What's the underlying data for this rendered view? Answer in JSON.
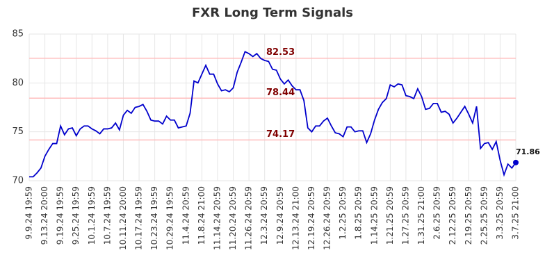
{
  "chart_data": {
    "type": "line",
    "title": "FXR Long Term Signals",
    "categories": [
      "9.9.24 19:59",
      null,
      null,
      null,
      "9.13.24 20:00",
      null,
      null,
      null,
      "9.19.24 19:59",
      null,
      null,
      null,
      "9.25.24 19:59",
      null,
      null,
      null,
      "10.1.24 19:59",
      null,
      null,
      null,
      "10.7.24 19:59",
      null,
      null,
      null,
      "10.11.24 20:00",
      null,
      null,
      null,
      "10.17.24 19:59",
      null,
      null,
      null,
      "10.23.24 19:59",
      null,
      null,
      null,
      "10.29.24 19:59",
      null,
      null,
      null,
      "11.4.24 20:59",
      null,
      null,
      null,
      "11.8.24 21:00",
      null,
      null,
      null,
      "11.14.24 20:59",
      null,
      null,
      null,
      "11.20.24 20:59",
      null,
      null,
      null,
      "11.26.24 20:59",
      null,
      null,
      null,
      "12.3.24 20:59",
      null,
      null,
      null,
      "12.9.24 20:59",
      null,
      null,
      null,
      "12.13.24 21:00",
      null,
      null,
      null,
      "12.19.24 20:59",
      null,
      null,
      null,
      "12.26.24 20:59",
      null,
      null,
      null,
      "1.2.25 20:59",
      null,
      null,
      null,
      "1.8.25 20:59",
      null,
      null,
      null,
      "1.14.25 20:59",
      null,
      null,
      null,
      "1.21.25 20:59",
      null,
      null,
      null,
      "1.27.25 20:59",
      null,
      null,
      null,
      "1.31.25 21:00",
      null,
      null,
      null,
      "2.6.25 20:59",
      null,
      null,
      null,
      "2.12.25 20:59",
      null,
      null,
      null,
      "2.19.25 20:59",
      null,
      null,
      null,
      "2.25.25 20:59",
      null,
      null,
      null,
      "3.3.25 20:59",
      null,
      null,
      null,
      "3.7.25 21:00"
    ],
    "values": [
      70.4,
      70.4,
      70.8,
      71.3,
      72.5,
      73.2,
      73.8,
      73.8,
      75.6,
      74.7,
      75.3,
      75.4,
      74.6,
      75.3,
      75.6,
      75.6,
      75.3,
      75.1,
      74.8,
      75.3,
      75.3,
      75.4,
      75.9,
      75.2,
      76.7,
      77.2,
      76.9,
      77.5,
      77.6,
      77.8,
      77.1,
      76.2,
      76.1,
      76.1,
      75.8,
      76.6,
      76.2,
      76.2,
      75.4,
      75.5,
      75.6,
      76.9,
      80.2,
      80.0,
      80.9,
      81.8,
      80.9,
      80.9,
      79.9,
      79.2,
      79.3,
      79.1,
      79.5,
      81.1,
      82.1,
      83.2,
      83.0,
      82.7,
      83.0,
      82.5,
      82.3,
      82.2,
      81.4,
      81.3,
      80.4,
      79.9,
      80.3,
      79.7,
      79.3,
      79.3,
      78.2,
      75.4,
      75.0,
      75.6,
      75.6,
      76.1,
      76.4,
      75.6,
      74.9,
      74.8,
      74.5,
      75.5,
      75.5,
      75.0,
      75.1,
      75.1,
      73.9,
      74.8,
      76.2,
      77.3,
      78.0,
      78.4,
      79.8,
      79.6,
      79.9,
      79.8,
      78.7,
      78.6,
      78.4,
      79.4,
      78.6,
      77.3,
      77.4,
      77.9,
      77.9,
      77.0,
      77.1,
      76.8,
      75.9,
      76.4,
      77.0,
      77.6,
      76.8,
      75.9,
      77.6,
      73.3,
      73.8,
      73.9,
      73.2,
      74.0,
      72.1,
      70.6,
      71.7,
      71.3,
      71.86
    ],
    "color": "#0000cc",
    "hlines": [
      82.53,
      78.44,
      74.17
    ],
    "hline_color": "#ffbdbd",
    "hline_label_color": "#800000",
    "ylim": [
      70,
      85
    ],
    "yticks": [
      70,
      75,
      80,
      85
    ],
    "grid": true
  }
}
